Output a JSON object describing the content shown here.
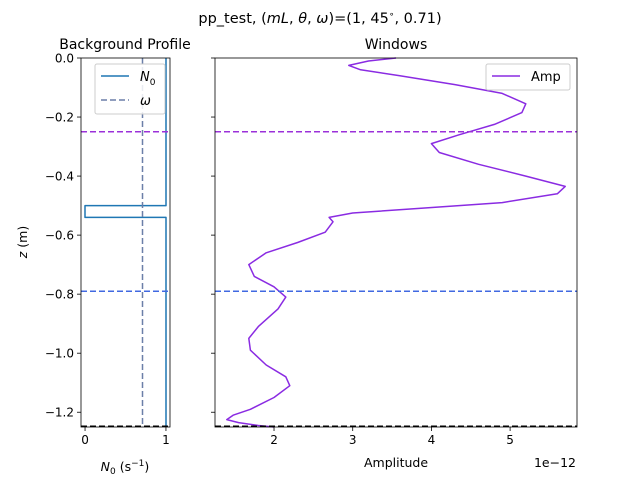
{
  "suptitle": {
    "prefix": "pp_test, (",
    "vars": [
      {
        "sym": "m",
        "sub": ""
      },
      {
        "sym": "L",
        "sub": ""
      },
      {
        "sym": "θ",
        "sub": ""
      },
      {
        "sym": "ω",
        "sub": ""
      }
    ],
    "middle": ")=(1, 45",
    "deg": "∘",
    "suffix": ", 0.71)"
  },
  "chart_data": [
    {
      "type": "line",
      "title": "Background Profile",
      "xlabel": {
        "sym": "N",
        "sub": "0",
        "units_open": " (s",
        "units_sup": "−1",
        "units_close": ")"
      },
      "ylabel": {
        "sym": "z",
        "units": " (m)"
      },
      "xlim": [
        -0.05,
        1.05
      ],
      "ylim": [
        -1.25,
        0.0
      ],
      "xticks": [
        {
          "v": 0,
          "label": "0"
        },
        {
          "v": 1,
          "label": "1"
        }
      ],
      "yticks": [
        {
          "v": 0.0,
          "label": "0.0"
        },
        {
          "v": -0.2,
          "label": "−0.2"
        },
        {
          "v": -0.4,
          "label": "−0.4"
        },
        {
          "v": -0.6,
          "label": "−0.6"
        },
        {
          "v": -0.8,
          "label": "−0.8"
        },
        {
          "v": -1.0,
          "label": "−1.0"
        },
        {
          "v": -1.2,
          "label": "−1.2"
        }
      ],
      "legend": {
        "placement": "top-center",
        "entries": [
          {
            "label_sym": "N",
            "label_sub": "0",
            "color": "#1f77b4",
            "dash": "solid"
          },
          {
            "label_sym": "ω",
            "label_sub": "",
            "color": "#6b7fa8",
            "dash": "dashed"
          }
        ]
      },
      "series": [
        {
          "name": "N0",
          "color": "#1f77b4",
          "dash": "solid",
          "points": [
            [
              1.0,
              0.0
            ],
            [
              1.0,
              -0.5
            ],
            [
              0.0,
              -0.5
            ],
            [
              0.0,
              -0.54
            ],
            [
              1.0,
              -0.54
            ],
            [
              1.0,
              -1.25
            ]
          ]
        },
        {
          "name": "ω",
          "color": "#6b7fa8",
          "dash": "dashed",
          "points": [
            [
              0.71,
              0.0
            ],
            [
              0.71,
              -1.25
            ]
          ]
        }
      ],
      "hlines": [
        {
          "y": -0.25,
          "color": "#9b30d9"
        },
        {
          "y": -0.79,
          "color": "#4169e1"
        },
        {
          "y": -1.25,
          "color": "#000000"
        }
      ]
    },
    {
      "type": "line",
      "title": "Windows",
      "xlabel": "Amplitude",
      "offset_text": "1e−12",
      "xlim": [
        1.25,
        5.85
      ],
      "ylim": [
        -1.25,
        0.0
      ],
      "xticks": [
        {
          "v": 2,
          "label": "2"
        },
        {
          "v": 3,
          "label": "3"
        },
        {
          "v": 4,
          "label": "4"
        },
        {
          "v": 5,
          "label": "5"
        }
      ],
      "legend": {
        "placement": "top-right",
        "entries": [
          {
            "label": "Amp",
            "color": "#8a2be2",
            "dash": "solid"
          }
        ]
      },
      "series": [
        {
          "name": "Amp",
          "color": "#8a2be2",
          "points": [
            [
              3.55,
              0.0
            ],
            [
              3.2,
              -0.01
            ],
            [
              2.95,
              -0.025
            ],
            [
              3.1,
              -0.04
            ],
            [
              3.6,
              -0.06
            ],
            [
              4.3,
              -0.09
            ],
            [
              4.9,
              -0.12
            ],
            [
              5.2,
              -0.155
            ],
            [
              5.15,
              -0.185
            ],
            [
              4.8,
              -0.225
            ],
            [
              4.35,
              -0.26
            ],
            [
              4.0,
              -0.29
            ],
            [
              4.1,
              -0.32
            ],
            [
              4.6,
              -0.36
            ],
            [
              5.2,
              -0.4
            ],
            [
              5.7,
              -0.435
            ],
            [
              5.6,
              -0.46
            ],
            [
              4.9,
              -0.49
            ],
            [
              3.8,
              -0.51
            ],
            [
              3.0,
              -0.525
            ],
            [
              2.7,
              -0.54
            ],
            [
              2.75,
              -0.555
            ],
            [
              2.65,
              -0.59
            ],
            [
              2.3,
              -0.625
            ],
            [
              1.9,
              -0.66
            ],
            [
              1.68,
              -0.7
            ],
            [
              1.75,
              -0.74
            ],
            [
              2.0,
              -0.775
            ],
            [
              2.15,
              -0.81
            ],
            [
              2.05,
              -0.85
            ],
            [
              1.8,
              -0.91
            ],
            [
              1.68,
              -0.95
            ],
            [
              1.7,
              -0.99
            ],
            [
              1.9,
              -1.04
            ],
            [
              2.15,
              -1.08
            ],
            [
              2.2,
              -1.11
            ],
            [
              2.0,
              -1.15
            ],
            [
              1.7,
              -1.19
            ],
            [
              1.48,
              -1.21
            ],
            [
              1.4,
              -1.225
            ],
            [
              1.55,
              -1.235
            ],
            [
              1.8,
              -1.245
            ],
            [
              2.0,
              -1.25
            ]
          ]
        }
      ],
      "hlines": [
        {
          "y": -0.25,
          "color": "#9b30d9"
        },
        {
          "y": -0.79,
          "color": "#4169e1"
        },
        {
          "y": -1.25,
          "color": "#000000"
        }
      ]
    }
  ]
}
